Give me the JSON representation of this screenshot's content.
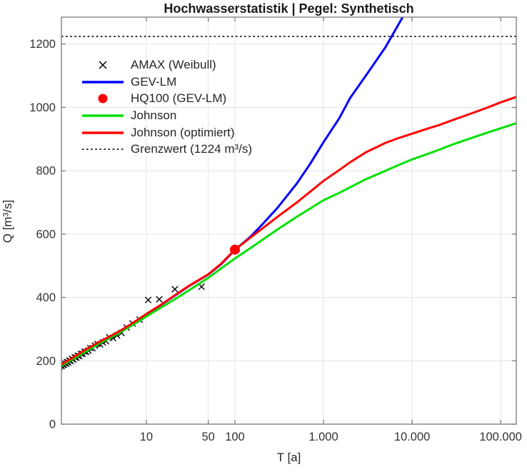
{
  "title": "Hochwasserstatistik | Pegel: Synthetisch",
  "axes": {
    "xlabel": "T [a]",
    "ylabel": "Q [m³/s]"
  },
  "legend": {
    "position": "upper-left",
    "items": [
      {
        "swatch": "cross",
        "color": "#000000",
        "label": "AMAX (Weibull)"
      },
      {
        "swatch": "line",
        "color": "#0000ff",
        "label": "GEV-LM"
      },
      {
        "swatch": "dot",
        "color": "#ff0000",
        "label": "HQ100 (GEV-LM)"
      },
      {
        "swatch": "line",
        "color": "#00e000",
        "label": "Johnson"
      },
      {
        "swatch": "line",
        "color": "#ff0000",
        "label": "Johnson (optimiert)"
      },
      {
        "swatch": "dotted",
        "color": "#2b2b2b",
        "label": "Grenzwert (1224 m³/s)"
      }
    ]
  },
  "colors": {
    "gev": "#0000ff",
    "johnson": "#00e000",
    "johnson_opt": "#ff0000",
    "scatter": "#000000",
    "threshold": "#2b2b2b",
    "hq100": "#ff0000",
    "grid": "#e4e4e4",
    "axis_box": "#7a7a7a",
    "tick_label": "#333333"
  },
  "chart_data": {
    "type": "line",
    "title": "Hochwasserstatistik | Pegel: Synthetisch",
    "xlabel": "T [a]",
    "ylabel": "Q [m³/s]",
    "x_scale": "log",
    "xlim": [
      1.1,
      150000
    ],
    "ylim": [
      0,
      1285
    ],
    "grid": true,
    "x_ticks": {
      "values": [
        10,
        50,
        100,
        1000,
        10000,
        100000
      ],
      "labels": [
        "10",
        "50",
        "100",
        "1.000",
        "10.000",
        "100.000"
      ]
    },
    "y_ticks": {
      "values": [
        0,
        200,
        400,
        600,
        800,
        1000,
        1200
      ],
      "labels": [
        "0",
        "200",
        "400",
        "600",
        "800",
        "1000",
        "1200"
      ]
    },
    "threshold": {
      "name": "Grenzwert",
      "value": 1224,
      "label": "Grenzwert (1224 m³/s)"
    },
    "hq100_point": {
      "name": "HQ100 (GEV-LM)",
      "T": 100,
      "Q": 551
    },
    "series": [
      {
        "name": "GEV-LM",
        "color": "#0000ff",
        "points": [
          [
            1.1,
            188
          ],
          [
            1.3,
            200
          ],
          [
            1.5,
            210
          ],
          [
            2,
            232
          ],
          [
            2.5,
            247
          ],
          [
            3,
            260
          ],
          [
            4,
            278
          ],
          [
            5,
            293
          ],
          [
            7,
            318
          ],
          [
            10,
            347
          ],
          [
            15,
            378
          ],
          [
            20,
            402
          ],
          [
            30,
            435
          ],
          [
            50,
            472
          ],
          [
            70,
            505
          ],
          [
            100,
            550
          ],
          [
            150,
            592
          ],
          [
            200,
            628
          ],
          [
            300,
            682
          ],
          [
            500,
            760
          ],
          [
            700,
            820
          ],
          [
            1000,
            890
          ],
          [
            1500,
            965
          ],
          [
            2000,
            1030
          ],
          [
            3000,
            1100
          ],
          [
            5000,
            1190
          ],
          [
            8000,
            1290
          ],
          [
            9000,
            1330
          ]
        ]
      },
      {
        "name": "Johnson",
        "color": "#00e000",
        "points": [
          [
            1.1,
            184
          ],
          [
            1.3,
            196
          ],
          [
            1.5,
            206
          ],
          [
            2,
            227
          ],
          [
            2.5,
            243
          ],
          [
            3,
            256
          ],
          [
            4,
            274
          ],
          [
            5,
            289
          ],
          [
            7,
            313
          ],
          [
            10,
            340
          ],
          [
            15,
            370
          ],
          [
            20,
            391
          ],
          [
            30,
            422
          ],
          [
            50,
            462
          ],
          [
            70,
            492
          ],
          [
            100,
            523
          ],
          [
            150,
            556
          ],
          [
            200,
            580
          ],
          [
            300,
            614
          ],
          [
            500,
            655
          ],
          [
            700,
            680
          ],
          [
            1000,
            707
          ],
          [
            1500,
            730
          ],
          [
            2000,
            748
          ],
          [
            3000,
            773
          ],
          [
            5000,
            800
          ],
          [
            7000,
            818
          ],
          [
            10000,
            836
          ],
          [
            15000,
            853
          ],
          [
            20000,
            866
          ],
          [
            30000,
            885
          ],
          [
            50000,
            906
          ],
          [
            70000,
            920
          ],
          [
            100000,
            934
          ],
          [
            150000,
            950
          ]
        ]
      },
      {
        "name": "Johnson (optimiert)",
        "color": "#ff0000",
        "points": [
          [
            1.1,
            189
          ],
          [
            1.5,
            211
          ],
          [
            2,
            233
          ],
          [
            3,
            261
          ],
          [
            4,
            279
          ],
          [
            5,
            294
          ],
          [
            7,
            319
          ],
          [
            10,
            348
          ],
          [
            15,
            379
          ],
          [
            20,
            403
          ],
          [
            30,
            436
          ],
          [
            50,
            473
          ],
          [
            70,
            507
          ],
          [
            100,
            551
          ],
          [
            150,
            589
          ],
          [
            200,
            616
          ],
          [
            300,
            654
          ],
          [
            500,
            700
          ],
          [
            700,
            733
          ],
          [
            1000,
            768
          ],
          [
            1500,
            802
          ],
          [
            2000,
            827
          ],
          [
            3000,
            858
          ],
          [
            5000,
            888
          ],
          [
            7000,
            903
          ],
          [
            10000,
            917
          ],
          [
            15000,
            933
          ],
          [
            20000,
            944
          ],
          [
            30000,
            962
          ],
          [
            50000,
            984
          ],
          [
            70000,
            999
          ],
          [
            100000,
            1016
          ],
          [
            150000,
            1033
          ]
        ]
      }
    ],
    "scatter": {
      "name": "AMAX (Weibull)",
      "marker": "x",
      "color": "#000000",
      "points": [
        [
          42,
          434
        ],
        [
          21,
          426
        ],
        [
          14,
          394
        ],
        [
          10.5,
          392
        ],
        [
          8.4,
          330
        ],
        [
          7.0,
          318
        ],
        [
          6.0,
          305
        ],
        [
          5.25,
          288
        ],
        [
          4.67,
          280
        ],
        [
          4.2,
          272
        ],
        [
          3.82,
          274
        ],
        [
          3.5,
          262
        ],
        [
          3.23,
          258
        ],
        [
          3.0,
          252
        ],
        [
          2.8,
          253
        ],
        [
          2.63,
          248
        ],
        [
          2.47,
          240
        ],
        [
          2.33,
          240
        ],
        [
          2.21,
          232
        ],
        [
          2.1,
          228
        ],
        [
          2.0,
          229
        ],
        [
          1.91,
          222
        ],
        [
          1.83,
          222
        ],
        [
          1.75,
          215
        ],
        [
          1.68,
          216
        ],
        [
          1.62,
          210
        ],
        [
          1.56,
          211
        ],
        [
          1.5,
          204
        ],
        [
          1.45,
          206
        ],
        [
          1.4,
          199
        ],
        [
          1.35,
          201
        ],
        [
          1.31,
          195
        ],
        [
          1.27,
          196
        ],
        [
          1.24,
          191
        ],
        [
          1.2,
          192
        ],
        [
          1.17,
          187
        ],
        [
          1.14,
          188
        ],
        [
          1.11,
          184
        ],
        [
          1.08,
          185
        ],
        [
          1.05,
          181
        ],
        [
          1.02,
          183
        ]
      ]
    }
  }
}
